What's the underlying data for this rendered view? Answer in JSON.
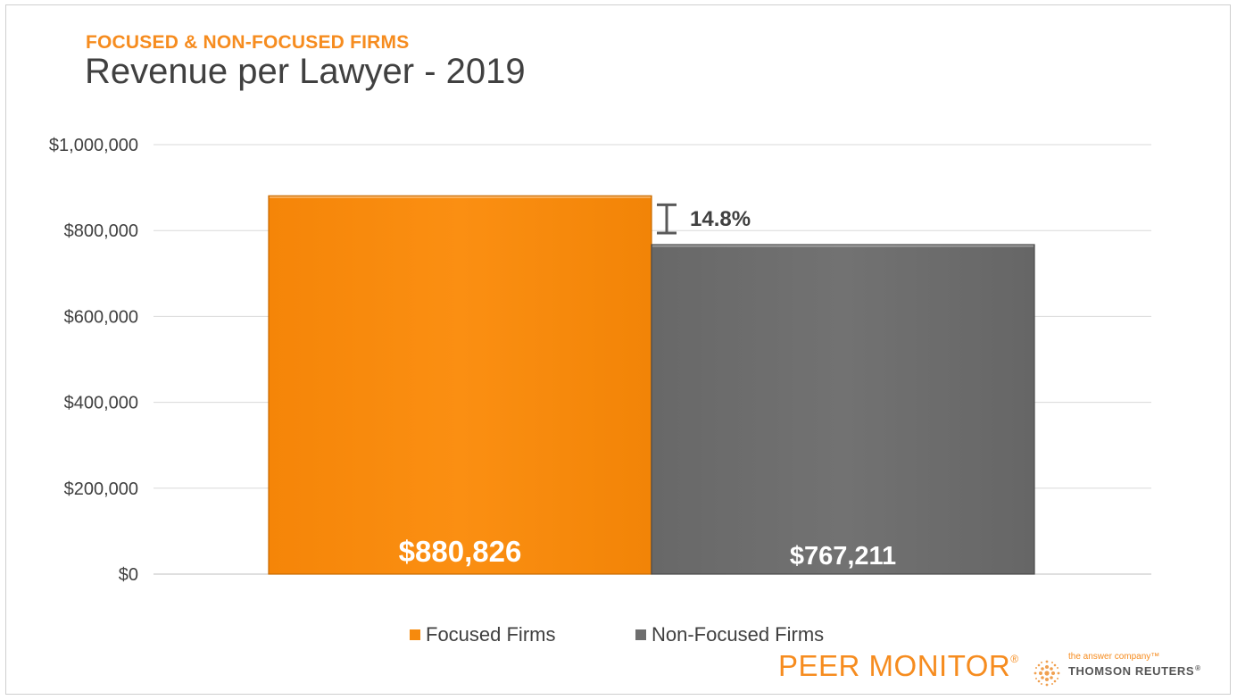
{
  "header": {
    "subtitle": "FOCUSED & NON-FOCUSED FIRMS",
    "title": "Revenue per Lawyer - 2019"
  },
  "chart_data": {
    "type": "bar",
    "categories": [
      "Focused Firms",
      "Non-Focused Firms"
    ],
    "values": [
      880826,
      767211
    ],
    "value_labels": [
      "$880,826",
      "$767,211"
    ],
    "colors": [
      "#f68a0d",
      "#6e6e6e"
    ],
    "yticks": [
      0,
      200000,
      400000,
      600000,
      800000,
      1000000
    ],
    "ytick_labels": [
      "$0",
      "$200,000",
      "$400,000",
      "$600,000",
      "$800,000",
      "$1,000,000"
    ],
    "ylim": [
      0,
      1000000
    ],
    "grid": true,
    "legend_position": "bottom",
    "annotation": {
      "text": "14.8%",
      "between": [
        "Focused Firms",
        "Non-Focused Firms"
      ]
    }
  },
  "legend": {
    "items": [
      {
        "label": "Focused Firms",
        "color": "#f68a0d"
      },
      {
        "label": "Non-Focused Firms",
        "color": "#6e6e6e"
      }
    ]
  },
  "footer": {
    "product": "PEER MONITOR",
    "registered": "®",
    "tagline": "the answer company™",
    "company": "THOMSON REUTERS",
    "company_mark": "®"
  }
}
